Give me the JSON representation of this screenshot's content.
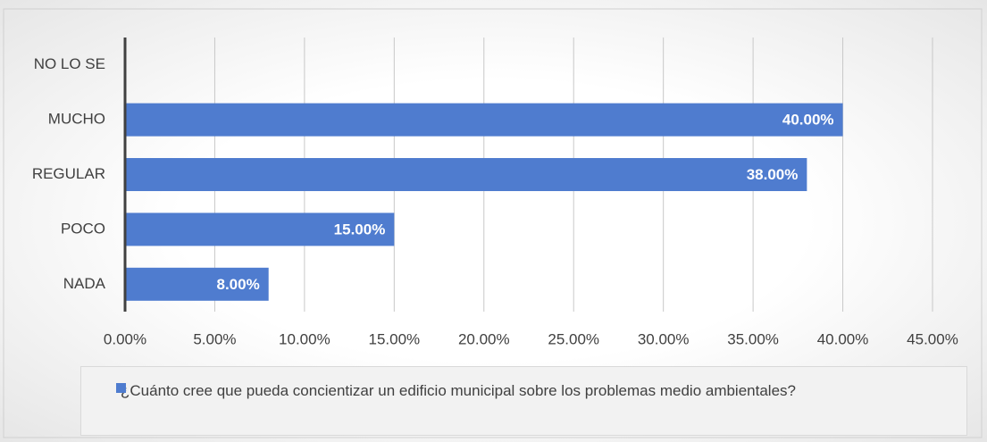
{
  "chart_data": {
    "type": "barh",
    "categories": [
      "NO LO SE",
      "MUCHO",
      "REGULAR",
      "POCO",
      "NADA"
    ],
    "series": [
      {
        "name": "¿Cuánto cree que pueda concientizar un edificio municipal sobre los problemas medio ambientales?",
        "color": "#4f7ccf",
        "values": [
          0,
          40,
          38,
          15,
          8
        ],
        "value_labels": [
          null,
          "40.00%",
          "38.00%",
          "15.00%",
          "8.00%"
        ]
      }
    ],
    "xlim": [
      0,
      45
    ],
    "xticks": [
      {
        "value": 0,
        "label": "0.00%"
      },
      {
        "value": 5,
        "label": "5.00%"
      },
      {
        "value": 10,
        "label": "10.00%"
      },
      {
        "value": 15,
        "label": "15.00%"
      },
      {
        "value": 20,
        "label": "20.00%"
      },
      {
        "value": 25,
        "label": "25.00%"
      },
      {
        "value": 30,
        "label": "30.00%"
      },
      {
        "value": 35,
        "label": "35.00%"
      },
      {
        "value": 40,
        "label": "40.00%"
      },
      {
        "value": 45,
        "label": "45.00%"
      }
    ],
    "grid": true,
    "legend": "bottom"
  }
}
